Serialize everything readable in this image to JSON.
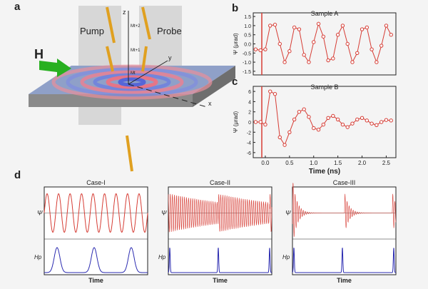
{
  "panel_a": {
    "label": "a",
    "pump": "Pump",
    "probe": "Probe",
    "field": "H",
    "axis_z": "z",
    "axis_y": "y",
    "axis_x": "x",
    "moments": [
      "Mt+2",
      "Mt+1",
      "Mt"
    ]
  },
  "chart_data": [
    {
      "type": "line",
      "panel": "b",
      "title": "Sample A",
      "ylabel": "Ψ (μrad)",
      "color": "#d63c34",
      "x": [
        -0.2,
        -0.1,
        0,
        0.1,
        0.2,
        0.3,
        0.4,
        0.5,
        0.6,
        0.7,
        0.8,
        0.9,
        1.0,
        1.1,
        1.2,
        1.3,
        1.4,
        1.5,
        1.6,
        1.7,
        1.8,
        1.9,
        2.0,
        2.1,
        2.2,
        2.3,
        2.4,
        2.5,
        2.6
      ],
      "values": [
        -0.3,
        -0.35,
        -0.3,
        1.0,
        1.05,
        0.0,
        -1.0,
        -0.4,
        0.9,
        0.8,
        -0.6,
        -1.0,
        0.1,
        1.1,
        0.4,
        -0.9,
        -0.8,
        0.5,
        1.0,
        0.0,
        -1.0,
        -0.5,
        0.8,
        0.9,
        -0.3,
        -1.0,
        -0.1,
        1.0,
        0.5
      ],
      "xlim": [
        -0.25,
        2.7
      ],
      "ylim": [
        -1.7,
        1.7
      ],
      "yticks": [
        -1.5,
        {
          "value": -1,
          "label": "-1.0"
        },
        -0.5,
        {
          "value": 0,
          "label": "0.0"
        },
        0.5,
        {
          "value": 1,
          "label": "1.0"
        },
        1.5
      ]
    },
    {
      "type": "line",
      "panel": "c",
      "title": "Sample B",
      "ylabel": "Ψ (μrad)",
      "xlabel": "Time (ns)",
      "color": "#d63c34",
      "x": [
        -0.2,
        -0.1,
        0,
        0.1,
        0.2,
        0.3,
        0.4,
        0.5,
        0.6,
        0.7,
        0.8,
        0.9,
        1.0,
        1.1,
        1.2,
        1.3,
        1.4,
        1.5,
        1.6,
        1.7,
        1.8,
        1.9,
        2.0,
        2.1,
        2.2,
        2.3,
        2.4,
        2.5,
        2.6
      ],
      "values": [
        0,
        0,
        -0.5,
        6,
        5.5,
        -3,
        -4.5,
        -2,
        0.5,
        2,
        2.5,
        1,
        -1.2,
        -1.5,
        -0.5,
        0.8,
        1.2,
        0.5,
        -0.5,
        -1,
        -0.3,
        0.5,
        0.8,
        0.3,
        -0.3,
        -0.6,
        0,
        0.4,
        0.3
      ],
      "xlim": [
        -0.25,
        2.7
      ],
      "ylim": [
        -7,
        7
      ],
      "xticks": [
        {
          "value": 0,
          "label": "0.0"
        },
        0.5,
        {
          "value": 1,
          "label": "1.0"
        },
        1.5,
        {
          "value": 2,
          "label": "2.0"
        },
        2.5
      ],
      "yticks": [
        -6,
        -4,
        -2,
        0,
        2,
        4,
        6
      ]
    }
  ],
  "panel_d": {
    "label": "d",
    "cases": [
      {
        "title": "Case-I",
        "psi": "Ψ",
        "h": "Hp",
        "xlabel": "Time"
      },
      {
        "title": "Case-II",
        "psi": "Ψ",
        "h": "Hp",
        "xlabel": "Time"
      },
      {
        "title": "Case-III",
        "psi": "Ψ",
        "h": "Hp",
        "xlabel": "Time"
      }
    ]
  }
}
